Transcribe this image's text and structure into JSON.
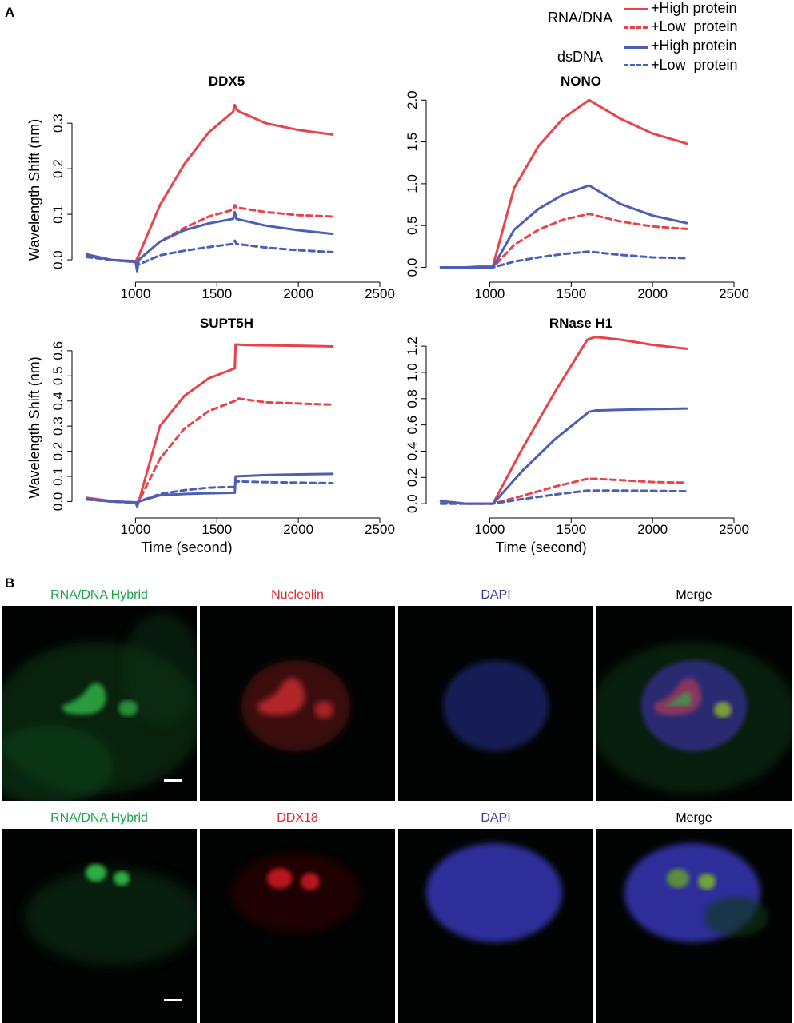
{
  "panel_a_letter": "A",
  "panel_b_letter": "B",
  "legend": {
    "groups": [
      {
        "label": "RNA/DNA",
        "color": "#e8434b",
        "entries": [
          {
            "label": "+High protein",
            "style": "solid"
          },
          {
            "label": "+Low  protein",
            "style": "dashed"
          }
        ]
      },
      {
        "label": "dsDNA",
        "color": "#4a5fb5",
        "entries": [
          {
            "label": "+High protein",
            "style": "solid"
          },
          {
            "label": "+Low  protein",
            "style": "dashed"
          }
        ]
      }
    ]
  },
  "chart_data": [
    {
      "type": "line",
      "title": "DDX5",
      "xlabel": "",
      "ylabel": "Wavelength Shift (nm)",
      "xlim": [
        620,
        2500
      ],
      "ylim": [
        -0.035,
        0.36
      ],
      "xticks": [
        1000,
        1500,
        2000,
        2500
      ],
      "yticks": [
        0.0,
        0.1,
        0.2,
        0.3
      ],
      "series": [
        {
          "name": "RNA/DNA +High protein",
          "color": "#e8434b",
          "dash": false,
          "x": [
            700,
            850,
            1000,
            1020,
            1150,
            1300,
            1450,
            1600,
            1610,
            1620,
            1640,
            1800,
            2000,
            2210
          ],
          "y": [
            0.01,
            0.0,
            -0.005,
            0.01,
            0.12,
            0.21,
            0.28,
            0.325,
            0.34,
            0.33,
            0.325,
            0.3,
            0.285,
            0.275
          ]
        },
        {
          "name": "RNA/DNA +Low protein",
          "color": "#e8434b",
          "dash": true,
          "x": [
            700,
            850,
            1000,
            1020,
            1150,
            1300,
            1450,
            1600,
            1610,
            1620,
            1800,
            2000,
            2210
          ],
          "y": [
            0.008,
            0.0,
            -0.005,
            0.0,
            0.04,
            0.07,
            0.095,
            0.11,
            0.12,
            0.115,
            0.105,
            0.098,
            0.095
          ]
        },
        {
          "name": "dsDNA +High protein",
          "color": "#4a5fb5",
          "dash": false,
          "x": [
            700,
            850,
            1000,
            1010,
            1020,
            1150,
            1300,
            1450,
            1600,
            1610,
            1620,
            1800,
            2000,
            2210
          ],
          "y": [
            0.012,
            0.0,
            -0.003,
            -0.025,
            0.0,
            0.04,
            0.065,
            0.08,
            0.09,
            0.105,
            0.09,
            0.075,
            0.065,
            0.057
          ]
        },
        {
          "name": "dsDNA +Low protein",
          "color": "#4a5fb5",
          "dash": true,
          "x": [
            700,
            850,
            1000,
            1020,
            1150,
            1300,
            1450,
            1600,
            1610,
            1620,
            1800,
            2000,
            2210
          ],
          "y": [
            0.006,
            0.0,
            -0.005,
            -0.01,
            0.01,
            0.02,
            0.028,
            0.035,
            0.042,
            0.035,
            0.027,
            0.021,
            0.017
          ]
        }
      ]
    },
    {
      "type": "line",
      "title": "NONO",
      "xlabel": "",
      "ylabel": "",
      "xlim": [
        620,
        2500
      ],
      "ylim": [
        -0.1,
        2.05
      ],
      "xticks": [
        1000,
        1500,
        2000,
        2500
      ],
      "yticks": [
        0.0,
        0.5,
        1.0,
        1.5,
        2.0
      ],
      "series": [
        {
          "name": "RNA/DNA +High protein",
          "color": "#e8434b",
          "dash": false,
          "x": [
            700,
            850,
            1020,
            1150,
            1300,
            1450,
            1610,
            1800,
            2000,
            2210
          ],
          "y": [
            0.0,
            0.0,
            0.02,
            0.95,
            1.45,
            1.78,
            2.0,
            1.78,
            1.6,
            1.48
          ]
        },
        {
          "name": "RNA/DNA +Low protein",
          "color": "#e8434b",
          "dash": true,
          "x": [
            700,
            850,
            1020,
            1150,
            1300,
            1450,
            1610,
            1800,
            2000,
            2210
          ],
          "y": [
            0.0,
            0.0,
            0.0,
            0.27,
            0.45,
            0.57,
            0.64,
            0.55,
            0.49,
            0.46
          ]
        },
        {
          "name": "dsDNA +High protein",
          "color": "#4a5fb5",
          "dash": false,
          "x": [
            700,
            850,
            1020,
            1150,
            1300,
            1450,
            1610,
            1800,
            2000,
            2210
          ],
          "y": [
            0.0,
            0.0,
            0.0,
            0.45,
            0.7,
            0.87,
            0.98,
            0.76,
            0.62,
            0.53
          ]
        },
        {
          "name": "dsDNA +Low protein",
          "color": "#4a5fb5",
          "dash": true,
          "x": [
            700,
            850,
            1020,
            1150,
            1300,
            1450,
            1610,
            1800,
            2000,
            2210
          ],
          "y": [
            0.0,
            0.0,
            0.0,
            0.07,
            0.12,
            0.16,
            0.19,
            0.15,
            0.12,
            0.11
          ]
        }
      ]
    },
    {
      "type": "line",
      "title": "SUPT5H",
      "xlabel": "Time (second)",
      "ylabel": "Wavelength Shift (nm)",
      "xlim": [
        620,
        2500
      ],
      "ylim": [
        -0.04,
        0.66
      ],
      "xticks": [
        1000,
        1500,
        2000,
        2500
      ],
      "yticks": [
        0.0,
        0.1,
        0.2,
        0.3,
        0.4,
        0.5,
        0.6
      ],
      "series": [
        {
          "name": "RNA/DNA +High protein",
          "color": "#e8434b",
          "dash": false,
          "x": [
            700,
            850,
            1000,
            1020,
            1150,
            1300,
            1450,
            1610,
            1615,
            1700,
            2000,
            2210
          ],
          "y": [
            0.015,
            0.002,
            -0.005,
            0.0,
            0.3,
            0.42,
            0.49,
            0.53,
            0.625,
            0.622,
            0.62,
            0.617
          ]
        },
        {
          "name": "RNA/DNA +Low protein",
          "color": "#e8434b",
          "dash": true,
          "x": [
            700,
            850,
            1000,
            1020,
            1150,
            1300,
            1450,
            1610,
            1630,
            1800,
            2000,
            2210
          ],
          "y": [
            0.01,
            0.0,
            -0.005,
            0.0,
            0.17,
            0.29,
            0.36,
            0.4,
            0.41,
            0.395,
            0.39,
            0.385
          ]
        },
        {
          "name": "dsDNA +High protein",
          "color": "#4a5fb5",
          "dash": false,
          "x": [
            700,
            850,
            1000,
            1010,
            1020,
            1150,
            1300,
            1450,
            1610,
            1615,
            1800,
            2000,
            2210
          ],
          "y": [
            0.01,
            0.0,
            -0.003,
            -0.02,
            0.0,
            0.025,
            0.03,
            0.033,
            0.035,
            0.1,
            0.105,
            0.108,
            0.11
          ]
        },
        {
          "name": "dsDNA +Low protein",
          "color": "#4a5fb5",
          "dash": true,
          "x": [
            700,
            850,
            1000,
            1020,
            1150,
            1300,
            1450,
            1610,
            1615,
            1800,
            2000,
            2210
          ],
          "y": [
            0.008,
            0.0,
            -0.005,
            0.0,
            0.03,
            0.045,
            0.055,
            0.058,
            0.08,
            0.077,
            0.075,
            0.073
          ]
        }
      ]
    },
    {
      "type": "line",
      "title": "RNase H1",
      "xlabel": "Time (second)",
      "ylabel": "",
      "xlim": [
        620,
        2500
      ],
      "ylim": [
        -0.06,
        1.28
      ],
      "xticks": [
        1000,
        1500,
        2000,
        2500
      ],
      "yticks": [
        0.0,
        0.2,
        0.4,
        0.6,
        0.8,
        1.0,
        1.2
      ],
      "series": [
        {
          "name": "RNA/DNA +High protein",
          "color": "#e8434b",
          "dash": false,
          "x": [
            700,
            850,
            1020,
            1200,
            1400,
            1600,
            1650,
            1800,
            2000,
            2210
          ],
          "y": [
            0.02,
            0.0,
            0.0,
            0.42,
            0.85,
            1.25,
            1.27,
            1.25,
            1.21,
            1.18
          ]
        },
        {
          "name": "RNA/DNA +Low protein",
          "color": "#e8434b",
          "dash": true,
          "x": [
            700,
            850,
            1020,
            1200,
            1400,
            1600,
            1650,
            1800,
            2000,
            2210
          ],
          "y": [
            0.0,
            0.0,
            0.0,
            0.06,
            0.13,
            0.19,
            0.19,
            0.18,
            0.165,
            0.16
          ]
        },
        {
          "name": "dsDNA +High protein",
          "color": "#4a5fb5",
          "dash": false,
          "x": [
            700,
            850,
            1020,
            1200,
            1400,
            1610,
            1650,
            1800,
            2000,
            2210
          ],
          "y": [
            0.02,
            0.0,
            0.0,
            0.25,
            0.49,
            0.7,
            0.71,
            0.715,
            0.72,
            0.725
          ]
        },
        {
          "name": "dsDNA +Low protein",
          "color": "#4a5fb5",
          "dash": true,
          "x": [
            700,
            850,
            1020,
            1200,
            1400,
            1600,
            1650,
            1800,
            2000,
            2210
          ],
          "y": [
            0.0,
            0.0,
            0.0,
            0.035,
            0.07,
            0.1,
            0.1,
            0.1,
            0.098,
            0.095
          ]
        }
      ]
    }
  ],
  "microscopy": {
    "row1": [
      "RNA/DNA Hybrid",
      "Nucleolin",
      "DAPI",
      "Merge"
    ],
    "row2": [
      "RNA/DNA Hybrid",
      "DDX18",
      "DAPI",
      "Merge"
    ],
    "label_colors": [
      "#1fa34a",
      "#e3252d",
      "#3a3f9a",
      "#000000"
    ]
  }
}
